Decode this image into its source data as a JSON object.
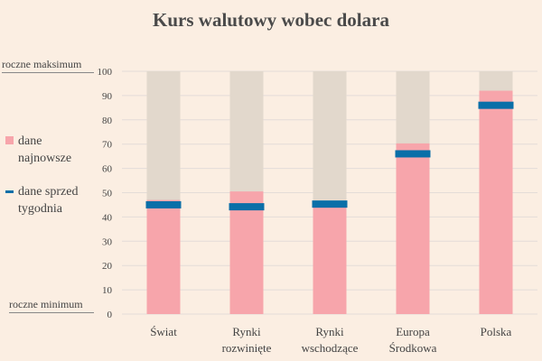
{
  "chart_data": {
    "type": "bar",
    "title": "Kurs walutowy wobec dolara",
    "annotations": {
      "top": "roczne maksimum",
      "bottom": "roczne minimum"
    },
    "categories": [
      [
        "Świat"
      ],
      [
        "Rynki",
        "rozwinięte"
      ],
      [
        "Rynki",
        "wschodzące"
      ],
      [
        "Europa",
        "Środkowa"
      ],
      [
        "Polska"
      ]
    ],
    "series": [
      {
        "name": "dane najnowsze",
        "type": "bar",
        "values": [
          47,
          50.5,
          46,
          70.3,
          92
        ],
        "color": "#f7a5ab"
      },
      {
        "name": "dane sprzed tygodnia",
        "type": "marker",
        "values": [
          45,
          44.2,
          45.3,
          66,
          86
        ],
        "color": "#0a6fa8"
      }
    ],
    "background_range": {
      "min": 0,
      "max": 100,
      "color": "#e2d8cc"
    },
    "ylim": [
      0,
      100
    ],
    "yticks": [
      0,
      10,
      20,
      30,
      40,
      50,
      60,
      70,
      80,
      90,
      100
    ],
    "grid": true,
    "legend_placement": "left"
  }
}
